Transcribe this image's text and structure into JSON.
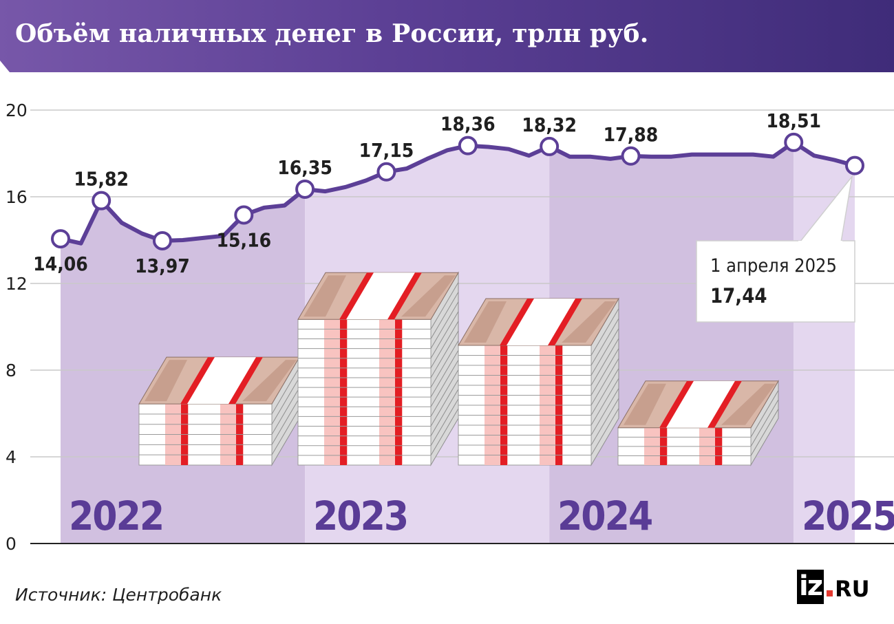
{
  "header": {
    "title": "Объём наличных денег в России, трлн руб."
  },
  "source": "Источник: Центробанк",
  "logo": {
    "main": "iz",
    "domain": "RU"
  },
  "colors": {
    "line": "#5c3f97",
    "band_dark": "#d1c0e0",
    "band_light": "#e4d7ef",
    "year_label": "#5a3c96",
    "strap_red": "#e31e24",
    "strap_pink": "#f8c3c0"
  },
  "chart_data": {
    "type": "line",
    "title": "Объём наличных денег в России, трлн руб.",
    "ylim": [
      0,
      20
    ],
    "yticks": [
      0,
      4,
      8,
      12,
      16,
      20
    ],
    "grid": true,
    "periods": [
      "2022",
      "2023",
      "2024",
      "2025"
    ],
    "series": [
      {
        "values": [
          14.06,
          13.85,
          15.82,
          14.8,
          14.3,
          13.97,
          14.0,
          14.1,
          14.2,
          15.16,
          15.5,
          15.6,
          16.35,
          16.25,
          16.45,
          16.75,
          17.15,
          17.3,
          17.75,
          18.15,
          18.36,
          18.3,
          18.2,
          17.9,
          18.32,
          17.85,
          17.85,
          17.75,
          17.88,
          17.85,
          17.85,
          17.95,
          17.95,
          17.95,
          17.95,
          17.85,
          18.51,
          17.9,
          17.7,
          17.44
        ]
      }
    ],
    "labeled_points": [
      {
        "index": 0,
        "label": "14,06",
        "pos": "below"
      },
      {
        "index": 2,
        "label": "15,82",
        "pos": "above"
      },
      {
        "index": 5,
        "label": "13,97",
        "pos": "below"
      },
      {
        "index": 9,
        "label": "15,16",
        "pos": "below"
      },
      {
        "index": 12,
        "label": "16,35",
        "pos": "above"
      },
      {
        "index": 16,
        "label": "17,15",
        "pos": "above"
      },
      {
        "index": 20,
        "label": "18,36",
        "pos": "above"
      },
      {
        "index": 24,
        "label": "18,32",
        "pos": "above"
      },
      {
        "index": 28,
        "label": "17,88",
        "pos": "above"
      },
      {
        "index": 36,
        "label": "18,51",
        "pos": "above"
      },
      {
        "index": 39,
        "label": "",
        "pos": "none"
      }
    ],
    "callout": {
      "index": 39,
      "date": "1 апреля 2025",
      "value": "17,44"
    },
    "stacks": [
      {
        "period": "2022",
        "value": 8.6
      },
      {
        "period": "2023",
        "value": 12.5
      },
      {
        "period": "2024",
        "value": 11.3
      },
      {
        "period": "2025",
        "value": 7.5
      }
    ]
  }
}
